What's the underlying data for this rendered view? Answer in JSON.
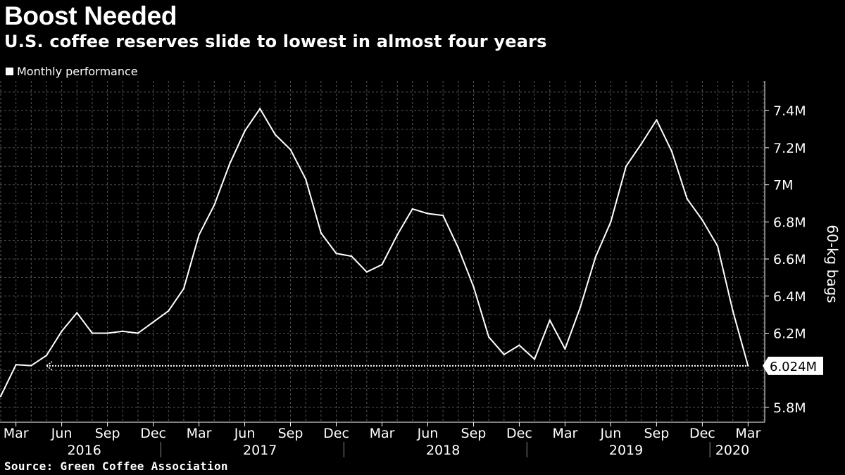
{
  "header": {
    "title": "Boost Needed",
    "subtitle": "U.S. coffee reserves slide to lowest in almost four years"
  },
  "legend": {
    "label": "Monthly performance"
  },
  "footer": {
    "source": "Source: Green Coffee Association"
  },
  "colors": {
    "background": "#000000",
    "line": "#ffffff",
    "grid": "#555555"
  },
  "chart_data": {
    "type": "line",
    "title": "Boost Needed",
    "subtitle": "U.S. coffee reserves slide to lowest in almost four years",
    "xlabel": "",
    "ylabel": "60-kg bags",
    "ylim": [
      5.72,
      7.56
    ],
    "y_ticks": [
      5.8,
      6.2,
      6.4,
      6.6,
      6.8,
      7.0,
      7.2,
      7.4
    ],
    "y_tick_labels": [
      "5.8M",
      "6.2M",
      "6.4M",
      "6.6M",
      "6.8M",
      "7M",
      "7.2M",
      "7.4M"
    ],
    "x_month_labels": [
      "Mar",
      "Jun",
      "Sep",
      "Dec",
      "Mar",
      "Jun",
      "Sep",
      "Dec",
      "Mar",
      "Jun",
      "Sep",
      "Dec",
      "Mar",
      "Jun",
      "Sep",
      "Dec",
      "Mar"
    ],
    "x_year_labels": [
      "2016",
      "2017",
      "2018",
      "2019",
      "2020"
    ],
    "grid": true,
    "legend_position": "top-left",
    "callout": {
      "label": "6.024M",
      "value": 6.024,
      "x": "2020-03"
    },
    "series": [
      {
        "name": "Monthly performance",
        "x": [
          "2016-02",
          "2016-03",
          "2016-04",
          "2016-05",
          "2016-06",
          "2016-07",
          "2016-08",
          "2016-09",
          "2016-10",
          "2016-11",
          "2016-12",
          "2017-01",
          "2017-02",
          "2017-03",
          "2017-04",
          "2017-05",
          "2017-06",
          "2017-07",
          "2017-08",
          "2017-09",
          "2017-10",
          "2017-11",
          "2017-12",
          "2018-01",
          "2018-02",
          "2018-03",
          "2018-04",
          "2018-05",
          "2018-06",
          "2018-07",
          "2018-08",
          "2018-09",
          "2018-10",
          "2018-11",
          "2018-12",
          "2019-01",
          "2019-02",
          "2019-03",
          "2019-04",
          "2019-05",
          "2019-06",
          "2019-07",
          "2019-08",
          "2019-09",
          "2019-10",
          "2019-11",
          "2019-12",
          "2020-01",
          "2020-02",
          "2020-03"
        ],
        "values": [
          5.86,
          6.03,
          6.025,
          6.08,
          6.21,
          6.31,
          6.2,
          6.2,
          6.21,
          6.2,
          6.26,
          6.32,
          6.44,
          6.73,
          6.89,
          7.11,
          7.29,
          7.41,
          7.27,
          7.19,
          7.03,
          6.74,
          6.63,
          6.615,
          6.53,
          6.57,
          6.73,
          6.87,
          6.845,
          6.835,
          6.66,
          6.45,
          6.18,
          6.085,
          6.135,
          6.06,
          6.27,
          6.115,
          6.34,
          6.61,
          6.8,
          7.1,
          7.22,
          7.35,
          7.18,
          6.925,
          6.81,
          6.67,
          6.32,
          6.024
        ]
      }
    ]
  }
}
